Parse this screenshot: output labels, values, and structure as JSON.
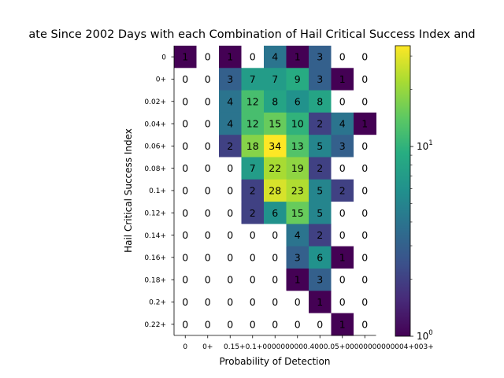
{
  "chart_data": {
    "type": "heatmap",
    "title": "ate Since 2002 Days with each Combination of Hail Critical Success Index and",
    "xlabel": "Probability of Detection",
    "ylabel": "Hail Critical Success Index",
    "x_tick_labels": [
      "0",
      "0+",
      "0.15+",
      "0.3+",
      "0.45+",
      "0.6+",
      "0.75+",
      "0.9+",
      "1+"
    ],
    "x_tick_overlap_text": "0.15+0.1+0000000000.4000.05+00000000000004+003+",
    "y_tick_labels": [
      "0",
      "0+",
      "0.02+",
      "0.04+",
      "0.06+",
      "0.08+",
      "0.1+",
      "0.12+",
      "0.14+",
      "0.16+",
      "0.18+",
      "0.2+",
      "0.22+"
    ],
    "values": [
      [
        1,
        0,
        1,
        0,
        4,
        1,
        3,
        0,
        0
      ],
      [
        0,
        0,
        3,
        7,
        7,
        9,
        3,
        1,
        0
      ],
      [
        0,
        0,
        4,
        12,
        8,
        6,
        8,
        0,
        0
      ],
      [
        0,
        0,
        4,
        12,
        15,
        10,
        2,
        4,
        1
      ],
      [
        0,
        0,
        2,
        18,
        34,
        13,
        5,
        3,
        0
      ],
      [
        0,
        0,
        0,
        7,
        22,
        19,
        2,
        0,
        0
      ],
      [
        0,
        0,
        0,
        2,
        28,
        23,
        5,
        2,
        0
      ],
      [
        0,
        0,
        0,
        2,
        6,
        15,
        5,
        0,
        0
      ],
      [
        0,
        0,
        0,
        0,
        0,
        4,
        2,
        0,
        0
      ],
      [
        0,
        0,
        0,
        0,
        0,
        3,
        6,
        1,
        0
      ],
      [
        0,
        0,
        0,
        0,
        0,
        1,
        3,
        0,
        0
      ],
      [
        0,
        0,
        0,
        0,
        0,
        0,
        1,
        0,
        0
      ],
      [
        0,
        0,
        0,
        0,
        0,
        0,
        0,
        1,
        0
      ]
    ],
    "color_scale": "log",
    "colormap": "viridis",
    "colorbar_range": [
      1,
      34
    ],
    "colorbar_ticks": [
      "10",
      "10"
    ],
    "colorbar_tick_exponents": [
      "0",
      "1"
    ],
    "zero_cell_color": "#ffffff",
    "grid": false
  }
}
